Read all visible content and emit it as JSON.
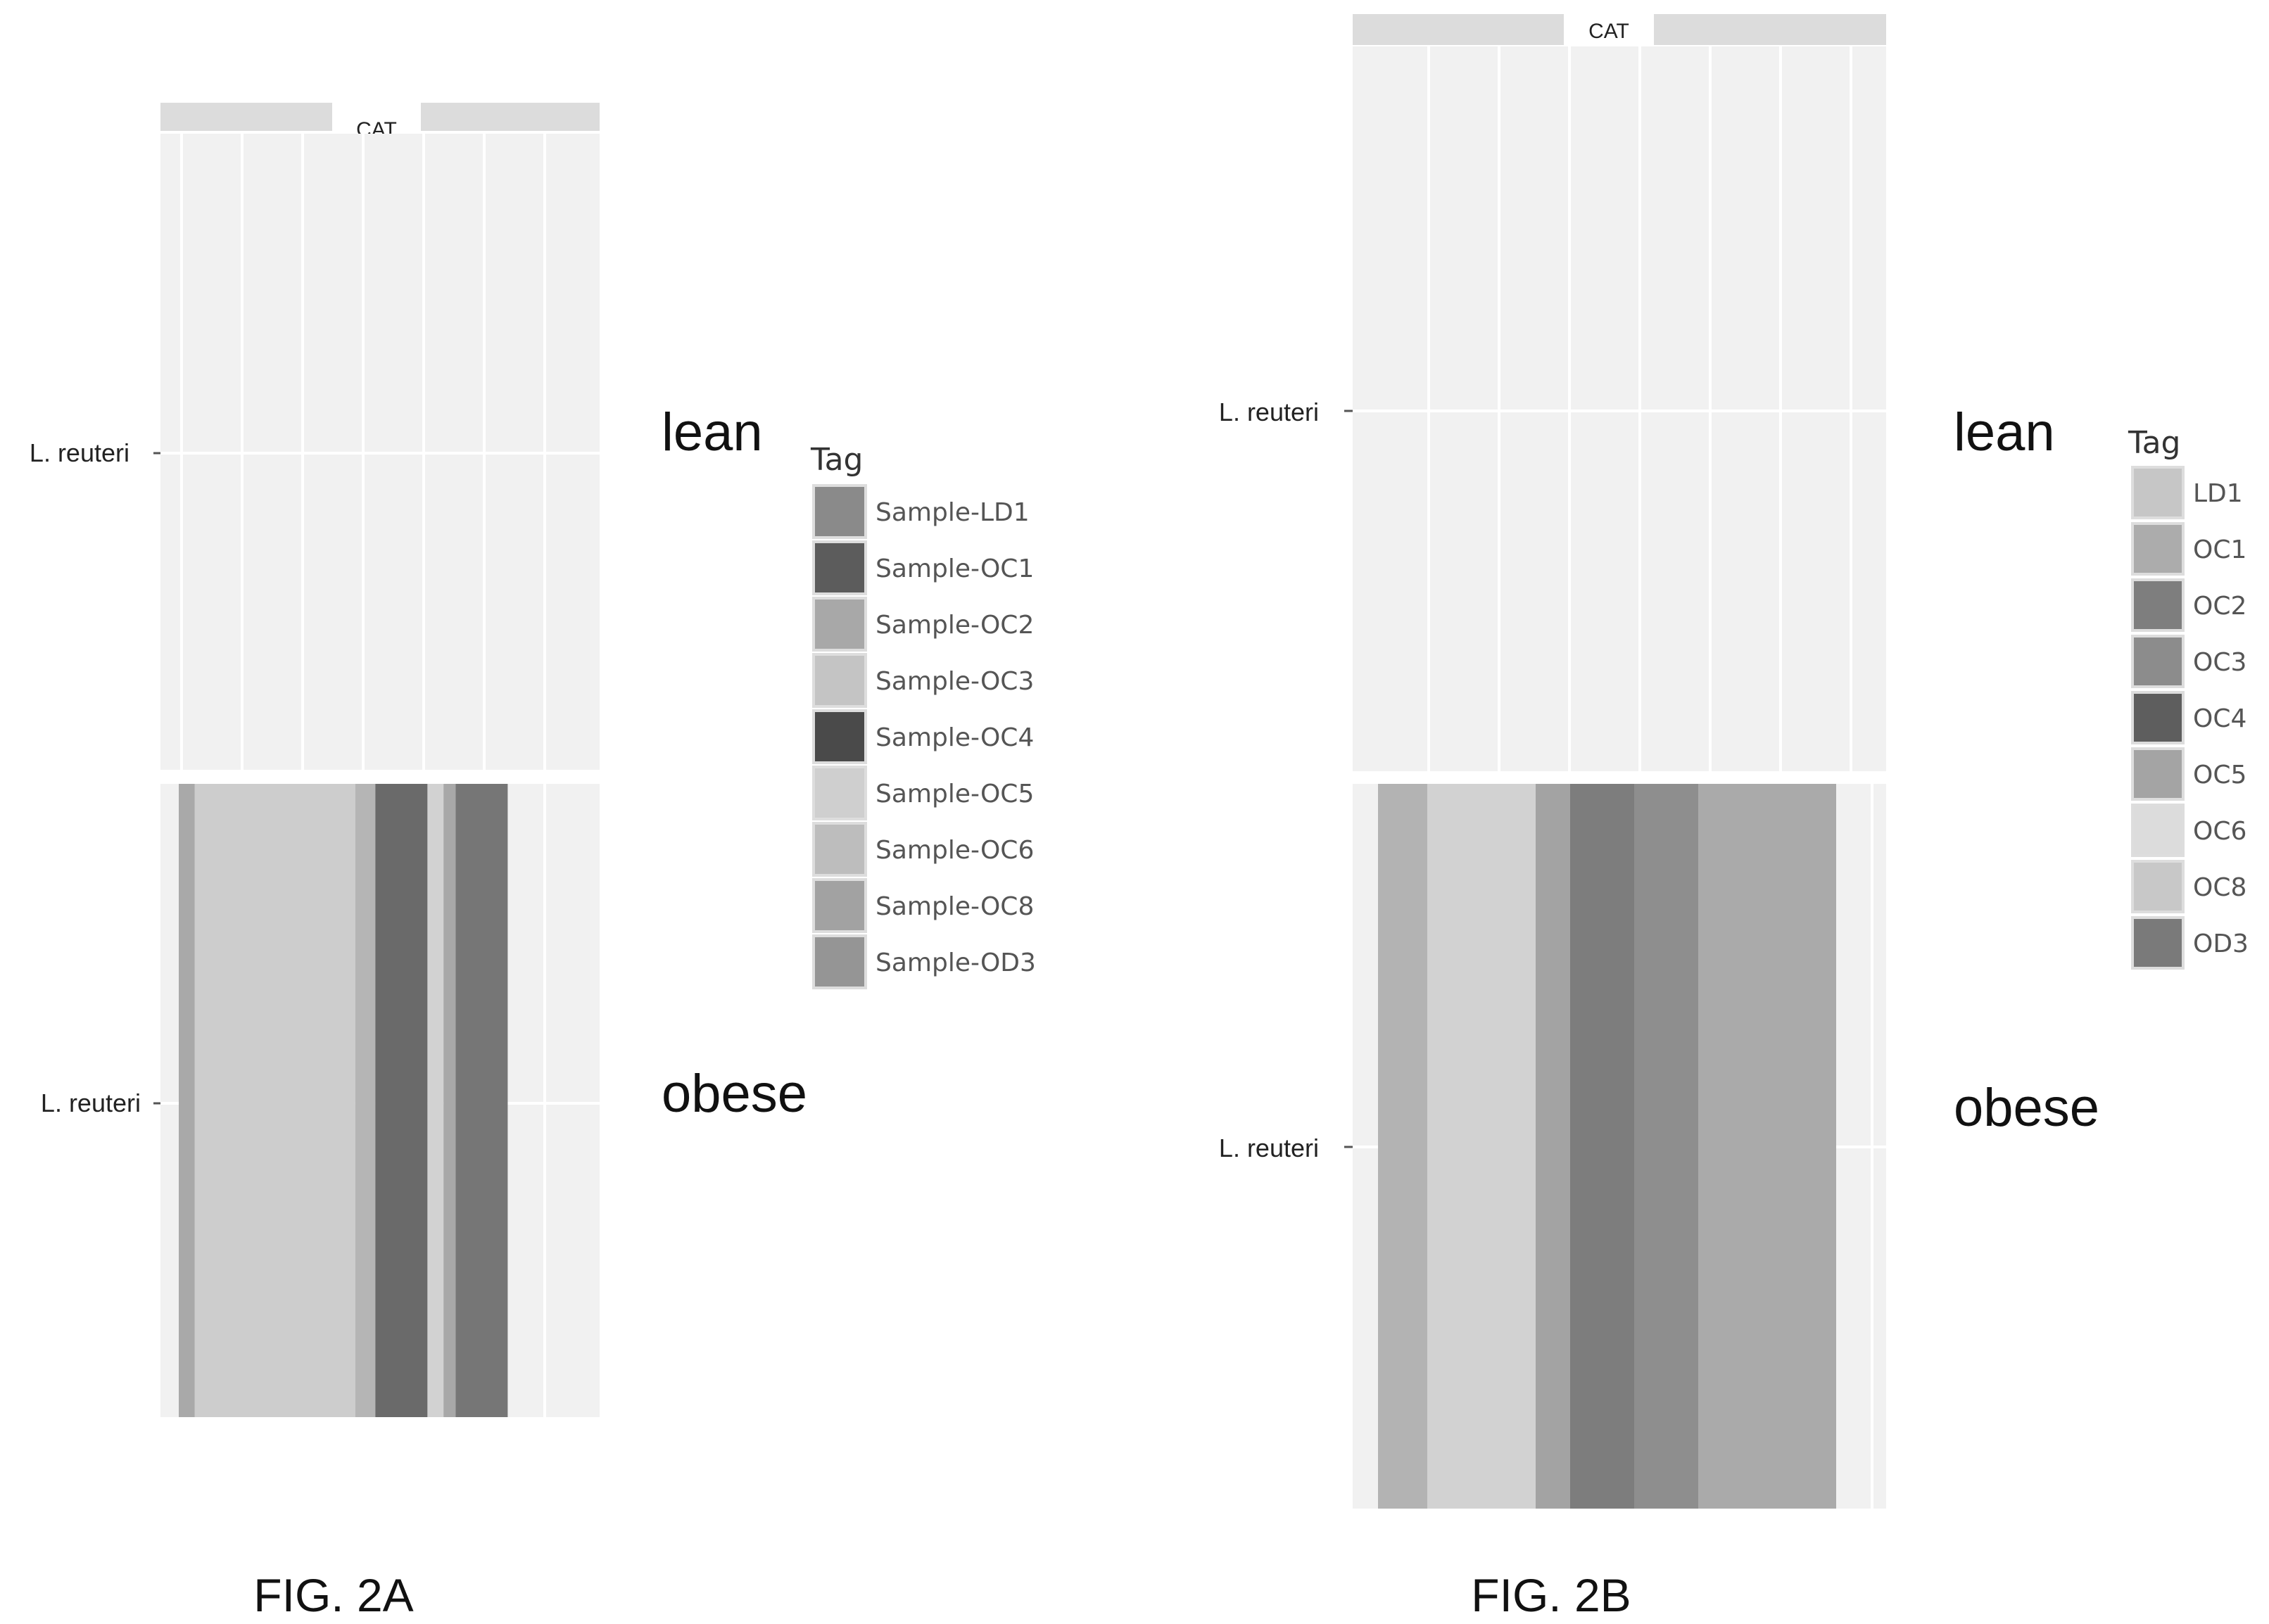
{
  "chart_data": [
    {
      "type": "bar",
      "figure_label": "FIG. 2A",
      "strip_label": "CAT",
      "legend": {
        "title": "Tag",
        "items": [
          {
            "label": "Sample-LD1",
            "color": "#8a8a8a"
          },
          {
            "label": "Sample-OC1",
            "color": "#5c5c5c"
          },
          {
            "label": "Sample-OC2",
            "color": "#a8a8a8"
          },
          {
            "label": "Sample-OC3",
            "color": "#c4c4c4"
          },
          {
            "label": "Sample-OC4",
            "color": "#4a4a4a"
          },
          {
            "label": "Sample-OC5",
            "color": "#cfcfcf"
          },
          {
            "label": "Sample-OC6",
            "color": "#bdbdbd"
          },
          {
            "label": "Sample-OC8",
            "color": "#a2a2a2"
          },
          {
            "label": "Sample-OD3",
            "color": "#959595"
          }
        ]
      },
      "panels": [
        {
          "group": "lean",
          "row_label": "L. reuteri",
          "series": []
        },
        {
          "group": "obese",
          "row_label": "L. reuteri",
          "series": [
            {
              "tag": "Sample-OC6",
              "value": 0.04,
              "color": "#a9a9a9"
            },
            {
              "tag": "Sample-OC5",
              "value": 0.4,
              "color": "#cdcdcd"
            },
            {
              "tag": "Sample-OC2",
              "value": 0.05,
              "color": "#b5b5b5"
            },
            {
              "tag": "Sample-OC4",
              "value": 0.13,
              "color": "#6a6a6a"
            },
            {
              "tag": "Sample-OC3",
              "value": 0.04,
              "color": "#d2d2d2"
            },
            {
              "tag": "Sample-OC8",
              "value": 0.03,
              "color": "#a8a8a8"
            },
            {
              "tag": "Sample-OC1",
              "value": 0.13,
              "color": "#767676"
            }
          ]
        }
      ]
    },
    {
      "type": "bar",
      "figure_label": "FIG. 2B",
      "strip_label": "CAT",
      "legend": {
        "title": "Tag",
        "items": [
          {
            "label": "LD1",
            "color": "#c6c6c6"
          },
          {
            "label": "OC1",
            "color": "#acacac"
          },
          {
            "label": "OC2",
            "color": "#7e7e7e"
          },
          {
            "label": "OC3",
            "color": "#8c8c8c"
          },
          {
            "label": "OC4",
            "color": "#5e5e5e"
          },
          {
            "label": "OC5",
            "color": "#a4a4a4"
          },
          {
            "label": "OC6",
            "color": "#dcdcdc"
          },
          {
            "label": "OC8",
            "color": "#c8c8c8"
          },
          {
            "label": "OD3",
            "color": "#7a7a7a"
          }
        ]
      },
      "panels": [
        {
          "group": "lean",
          "row_label": "L. reuteri",
          "series": []
        },
        {
          "group": "obese",
          "row_label": "L. reuteri",
          "series": [
            {
              "tag": "OC1",
              "value": 0.1,
              "color": "#b3b3b3"
            },
            {
              "tag": "OC6",
              "value": 0.22,
              "color": "#d2d2d2"
            },
            {
              "tag": "OC3",
              "value": 0.07,
              "color": "#a3a3a3"
            },
            {
              "tag": "OD3",
              "value": 0.13,
              "color": "#7d7d7d"
            },
            {
              "tag": "OC2",
              "value": 0.13,
              "color": "#8e8e8e"
            },
            {
              "tag": "OC5",
              "value": 0.28,
              "color": "#aaaaaa"
            }
          ]
        }
      ]
    }
  ]
}
